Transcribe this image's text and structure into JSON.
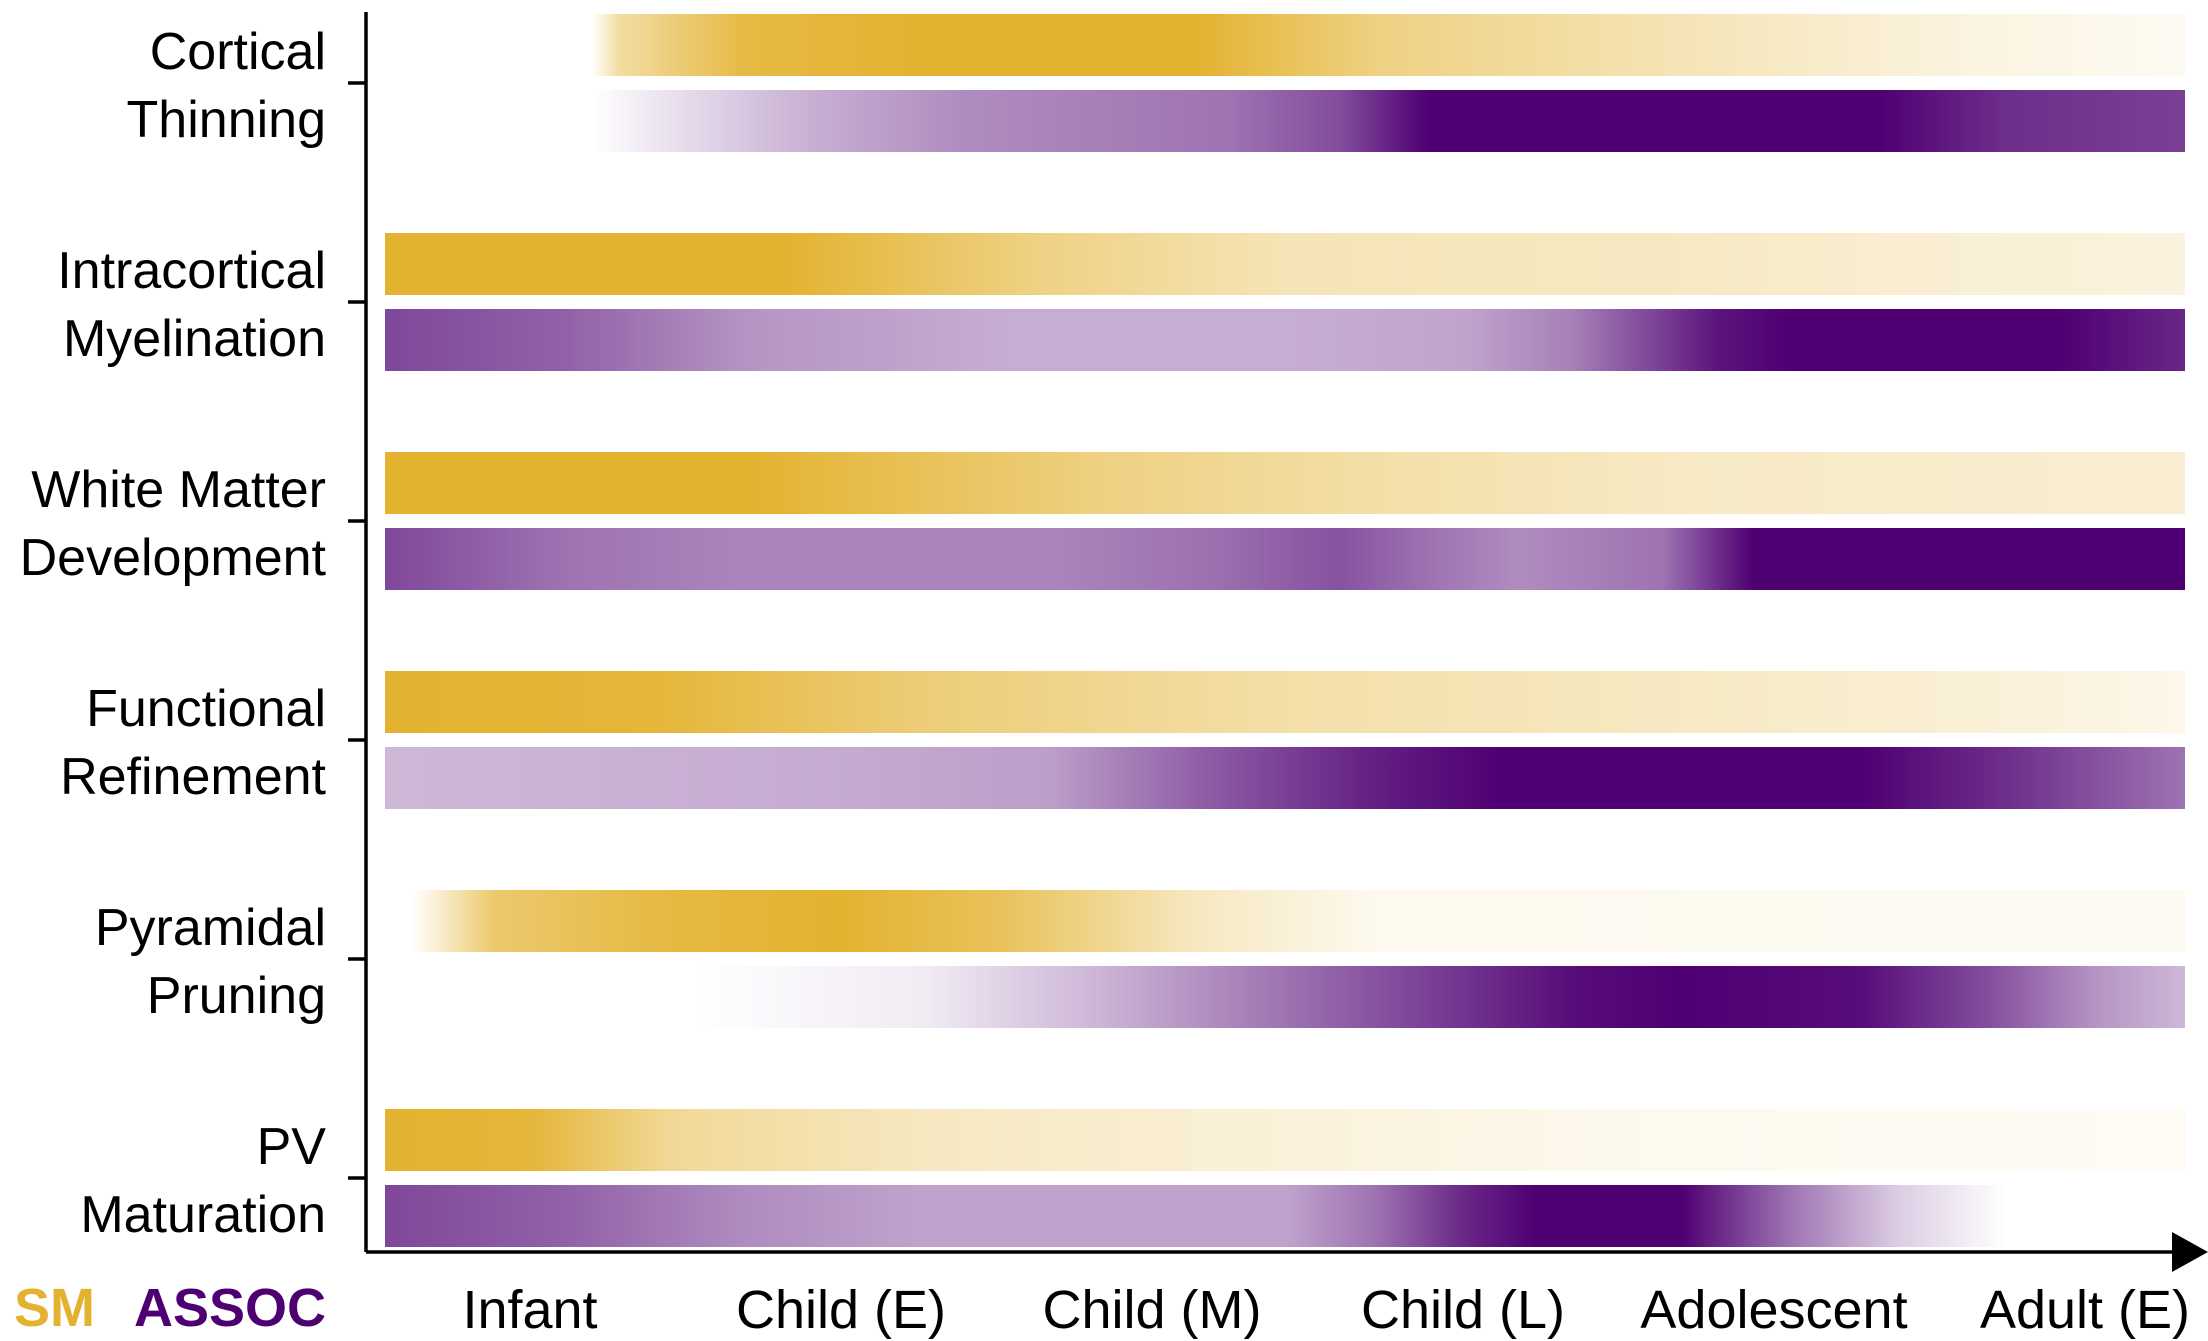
{
  "colors": {
    "sm": "#E3B22F",
    "assoc": "#4E0072",
    "axis": "#000000",
    "background": "#FFFFFF"
  },
  "legend": {
    "sm_label": "SM",
    "assoc_label": "ASSOC"
  },
  "stages": [
    "Infant",
    "Child (E)",
    "Child (M)",
    "Child (L)",
    "Adolescent",
    "Adult (E)"
  ],
  "rows": [
    {
      "label_lines": [
        "Cortical",
        "Thinning"
      ],
      "sm_gradient": [
        {
          "t": 0.115,
          "i": 0.0
        },
        {
          "t": 0.13,
          "i": 0.45
        },
        {
          "t": 0.2,
          "i": 0.9
        },
        {
          "t": 0.3,
          "i": 1.0
        },
        {
          "t": 0.45,
          "i": 1.0
        },
        {
          "t": 0.55,
          "i": 0.6
        },
        {
          "t": 0.72,
          "i": 0.35
        },
        {
          "t": 0.88,
          "i": 0.15
        },
        {
          "t": 1.0,
          "i": 0.06
        }
      ],
      "assoc_gradient": [
        {
          "t": 0.115,
          "i": 0.0
        },
        {
          "t": 0.17,
          "i": 0.15
        },
        {
          "t": 0.24,
          "i": 0.32
        },
        {
          "t": 0.32,
          "i": 0.45
        },
        {
          "t": 0.47,
          "i": 0.55
        },
        {
          "t": 0.53,
          "i": 0.7
        },
        {
          "t": 0.58,
          "i": 1.0
        },
        {
          "t": 0.83,
          "i": 1.0
        },
        {
          "t": 0.9,
          "i": 0.82
        },
        {
          "t": 1.0,
          "i": 0.75
        }
      ]
    },
    {
      "label_lines": [
        "Intracortical",
        "Myelination"
      ],
      "sm_gradient": [
        {
          "t": 0.0,
          "i": 1.0
        },
        {
          "t": 0.22,
          "i": 1.0
        },
        {
          "t": 0.36,
          "i": 0.6
        },
        {
          "t": 0.5,
          "i": 0.35
        },
        {
          "t": 0.7,
          "i": 0.3
        },
        {
          "t": 0.85,
          "i": 0.22
        },
        {
          "t": 1.0,
          "i": 0.16
        }
      ],
      "assoc_gradient": [
        {
          "t": 0.0,
          "i": 0.72
        },
        {
          "t": 0.1,
          "i": 0.62
        },
        {
          "t": 0.2,
          "i": 0.42
        },
        {
          "t": 0.35,
          "i": 0.32
        },
        {
          "t": 0.5,
          "i": 0.32
        },
        {
          "t": 0.6,
          "i": 0.36
        },
        {
          "t": 0.66,
          "i": 0.5
        },
        {
          "t": 0.74,
          "i": 0.92
        },
        {
          "t": 0.78,
          "i": 1.0
        },
        {
          "t": 0.93,
          "i": 1.0
        },
        {
          "t": 1.0,
          "i": 0.85
        }
      ]
    },
    {
      "label_lines": [
        "White Matter",
        "Development"
      ],
      "sm_gradient": [
        {
          "t": 0.0,
          "i": 1.0
        },
        {
          "t": 0.2,
          "i": 1.0
        },
        {
          "t": 0.4,
          "i": 0.6
        },
        {
          "t": 0.55,
          "i": 0.42
        },
        {
          "t": 0.72,
          "i": 0.28
        },
        {
          "t": 1.0,
          "i": 0.22
        }
      ],
      "assoc_gradient": [
        {
          "t": 0.0,
          "i": 0.72
        },
        {
          "t": 0.1,
          "i": 0.55
        },
        {
          "t": 0.2,
          "i": 0.48
        },
        {
          "t": 0.37,
          "i": 0.48
        },
        {
          "t": 0.46,
          "i": 0.56
        },
        {
          "t": 0.53,
          "i": 0.68
        },
        {
          "t": 0.58,
          "i": 0.55
        },
        {
          "t": 0.63,
          "i": 0.45
        },
        {
          "t": 0.71,
          "i": 0.55
        },
        {
          "t": 0.76,
          "i": 1.0
        },
        {
          "t": 1.0,
          "i": 1.0
        }
      ]
    },
    {
      "label_lines": [
        "Functional",
        "Refinement"
      ],
      "sm_gradient": [
        {
          "t": 0.0,
          "i": 1.0
        },
        {
          "t": 0.15,
          "i": 0.95
        },
        {
          "t": 0.3,
          "i": 0.65
        },
        {
          "t": 0.5,
          "i": 0.42
        },
        {
          "t": 0.7,
          "i": 0.3
        },
        {
          "t": 0.88,
          "i": 0.2
        },
        {
          "t": 1.0,
          "i": 0.1
        }
      ],
      "assoc_gradient": [
        {
          "t": 0.0,
          "i": 0.28
        },
        {
          "t": 0.25,
          "i": 0.33
        },
        {
          "t": 0.37,
          "i": 0.38
        },
        {
          "t": 0.45,
          "i": 0.62
        },
        {
          "t": 0.55,
          "i": 0.88
        },
        {
          "t": 0.62,
          "i": 1.0
        },
        {
          "t": 0.82,
          "i": 1.0
        },
        {
          "t": 0.9,
          "i": 0.82
        },
        {
          "t": 1.0,
          "i": 0.55
        }
      ]
    },
    {
      "label_lines": [
        "Pyramidal",
        "Pruning"
      ],
      "sm_gradient": [
        {
          "t": 0.015,
          "i": 0.0
        },
        {
          "t": 0.06,
          "i": 0.7
        },
        {
          "t": 0.15,
          "i": 0.9
        },
        {
          "t": 0.25,
          "i": 1.0
        },
        {
          "t": 0.34,
          "i": 0.8
        },
        {
          "t": 0.45,
          "i": 0.3
        },
        {
          "t": 0.55,
          "i": 0.08
        },
        {
          "t": 1.0,
          "i": 0.06
        }
      ],
      "assoc_gradient": [
        {
          "t": 0.17,
          "i": 0.0
        },
        {
          "t": 0.3,
          "i": 0.08
        },
        {
          "t": 0.4,
          "i": 0.3
        },
        {
          "t": 0.5,
          "i": 0.55
        },
        {
          "t": 0.58,
          "i": 0.75
        },
        {
          "t": 0.66,
          "i": 0.95
        },
        {
          "t": 0.72,
          "i": 1.0
        },
        {
          "t": 0.82,
          "i": 0.95
        },
        {
          "t": 0.89,
          "i": 0.7
        },
        {
          "t": 0.95,
          "i": 0.42
        },
        {
          "t": 1.0,
          "i": 0.28
        }
      ]
    },
    {
      "label_lines": [
        "PV",
        "Maturation"
      ],
      "sm_gradient": [
        {
          "t": 0.0,
          "i": 1.0
        },
        {
          "t": 0.08,
          "i": 0.95
        },
        {
          "t": 0.16,
          "i": 0.5
        },
        {
          "t": 0.3,
          "i": 0.3
        },
        {
          "t": 0.55,
          "i": 0.15
        },
        {
          "t": 0.7,
          "i": 0.08
        },
        {
          "t": 1.0,
          "i": 0.05
        }
      ],
      "assoc_gradient": [
        {
          "t": 0.0,
          "i": 0.72
        },
        {
          "t": 0.1,
          "i": 0.62
        },
        {
          "t": 0.2,
          "i": 0.45
        },
        {
          "t": 0.3,
          "i": 0.36
        },
        {
          "t": 0.5,
          "i": 0.36
        },
        {
          "t": 0.55,
          "i": 0.55
        },
        {
          "t": 0.6,
          "i": 0.85
        },
        {
          "t": 0.64,
          "i": 1.0
        },
        {
          "t": 0.72,
          "i": 1.0
        },
        {
          "t": 0.78,
          "i": 0.55
        },
        {
          "t": 0.84,
          "i": 0.2
        },
        {
          "t": 0.9,
          "i": 0.0
        }
      ]
    }
  ]
}
